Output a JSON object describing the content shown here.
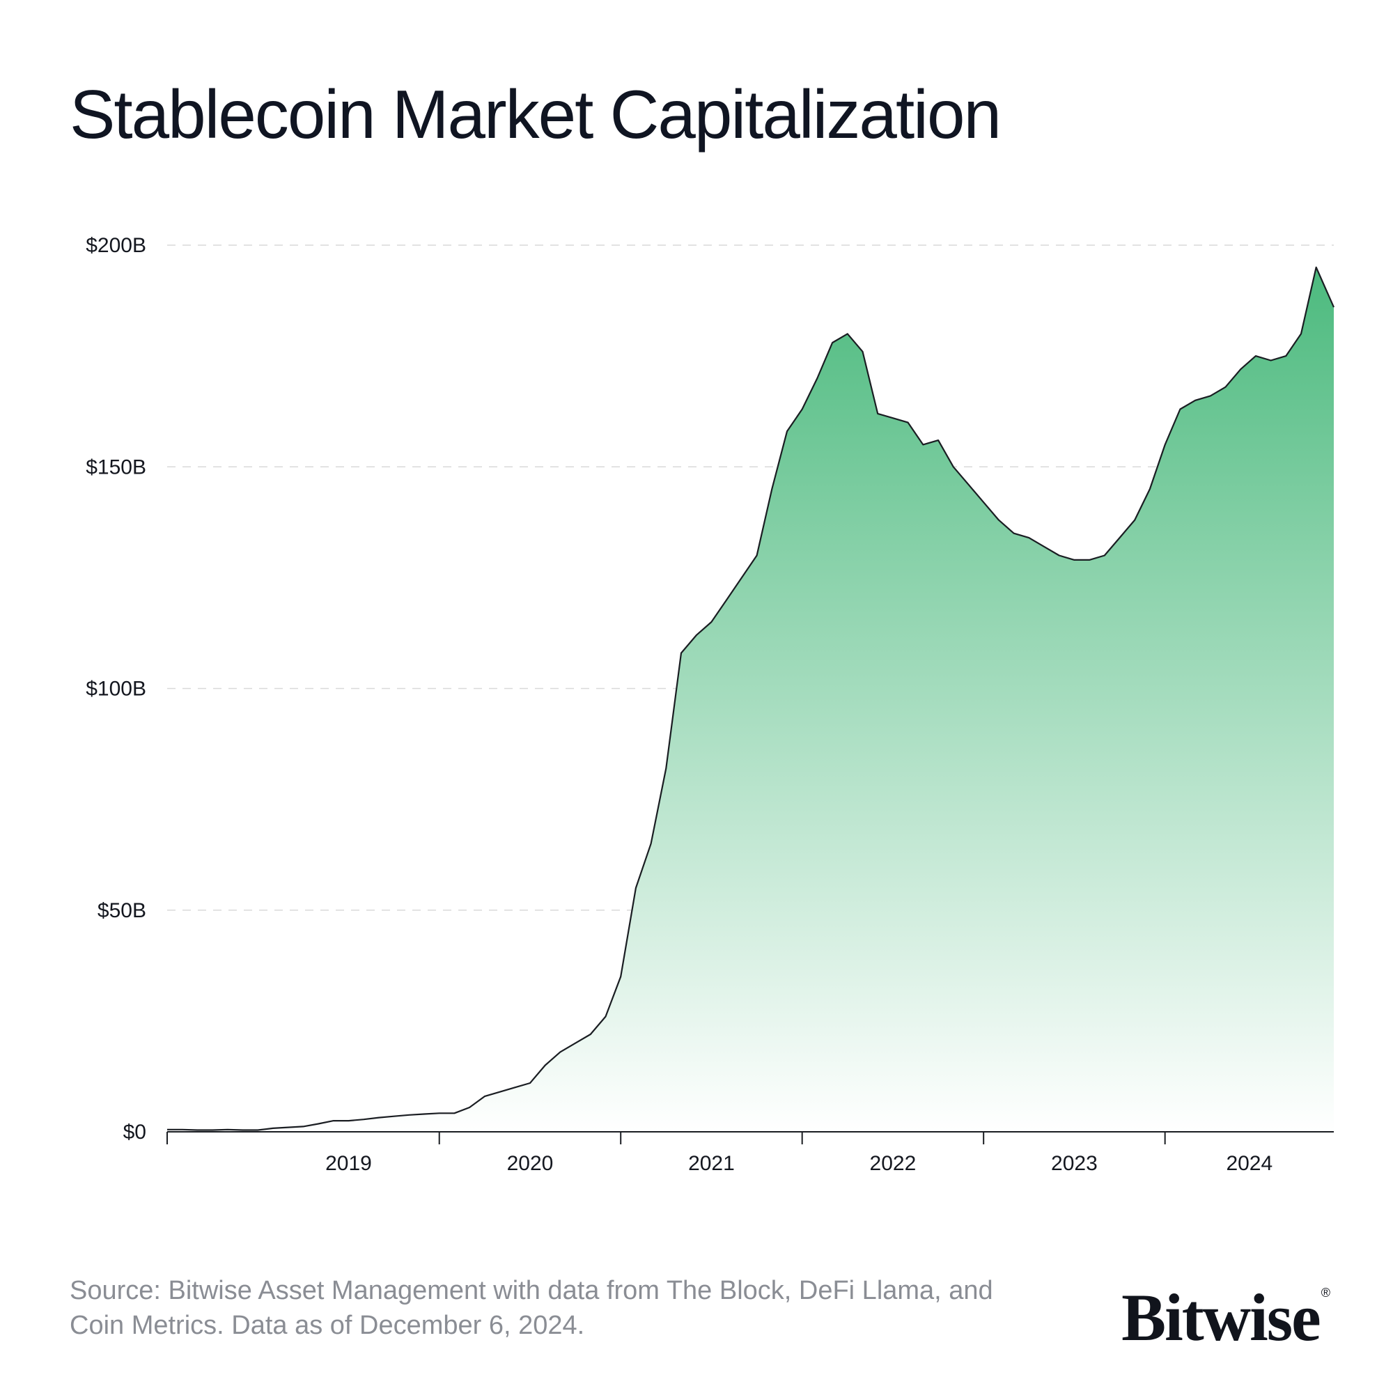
{
  "title": "Stablecoin Market Capitalization",
  "source_text": "Source: Bitwise Asset Management with data from The Block, DeFi Llama, and Coin Metrics. Data as of December 6, 2024.",
  "logo": {
    "text": "Bitwise",
    "mark": "®"
  },
  "colors": {
    "area_top": "#4cba7e",
    "area_bottom": "#ffffff",
    "line": "#1a1d22",
    "grid": "#d9d9d9",
    "axis": "#1a1d22"
  },
  "chart_data": {
    "type": "area",
    "title": "Stablecoin Market Capitalization",
    "xlabel": "",
    "ylabel": "",
    "ylim": [
      0,
      200
    ],
    "yunit": "$B",
    "grid": true,
    "legend": "none",
    "yticks": [
      {
        "value": 0,
        "label": "$0"
      },
      {
        "value": 50,
        "label": "$50B"
      },
      {
        "value": 100,
        "label": "$100B"
      },
      {
        "value": 150,
        "label": "$150B"
      },
      {
        "value": 200,
        "label": "$200B"
      }
    ],
    "xticks": [
      {
        "value": "2019",
        "label": "2019"
      },
      {
        "value": "2020",
        "label": "2020"
      },
      {
        "value": "2021",
        "label": "2021"
      },
      {
        "value": "2022",
        "label": "2022"
      },
      {
        "value": "2023",
        "label": "2023"
      },
      {
        "value": "2024",
        "label": "2024"
      }
    ],
    "xlim": [
      "2018-07",
      "2024-12-06"
    ],
    "series": [
      {
        "x": [
          "2018-07",
          "2018-08",
          "2018-09",
          "2018-10",
          "2018-11",
          "2018-12",
          "2019-01",
          "2019-02",
          "2019-03",
          "2019-04",
          "2019-05",
          "2019-06",
          "2019-07",
          "2019-08",
          "2019-09",
          "2019-10",
          "2019-11",
          "2019-12",
          "2020-01",
          "2020-02",
          "2020-03",
          "2020-04",
          "2020-05",
          "2020-06",
          "2020-07",
          "2020-08",
          "2020-09",
          "2020-10",
          "2020-11",
          "2020-12",
          "2021-01",
          "2021-02",
          "2021-03",
          "2021-04",
          "2021-05",
          "2021-06",
          "2021-07",
          "2021-08",
          "2021-09",
          "2021-10",
          "2021-11",
          "2021-12",
          "2022-01",
          "2022-02",
          "2022-03",
          "2022-04",
          "2022-05",
          "2022-06",
          "2022-07",
          "2022-08",
          "2022-09",
          "2022-10",
          "2022-11",
          "2022-12",
          "2023-01",
          "2023-02",
          "2023-03",
          "2023-04",
          "2023-05",
          "2023-06",
          "2023-07",
          "2023-08",
          "2023-09",
          "2023-10",
          "2023-11",
          "2023-12",
          "2024-01",
          "2024-02",
          "2024-03",
          "2024-04",
          "2024-05",
          "2024-06",
          "2024-07",
          "2024-08",
          "2024-09",
          "2024-10",
          "2024-11",
          "2024-12-06"
        ],
        "values": [
          0.5,
          0.5,
          0.4,
          0.4,
          0.5,
          0.4,
          0.4,
          0.8,
          1.0,
          1.2,
          1.8,
          2.5,
          2.5,
          2.8,
          3.2,
          3.5,
          3.8,
          4.0,
          4.2,
          4.2,
          5.5,
          8.0,
          9.0,
          10.0,
          11.0,
          15.0,
          18.0,
          20.0,
          22.0,
          26.0,
          35.0,
          55.0,
          65.0,
          82.0,
          108.0,
          112.0,
          115.0,
          120.0,
          125.0,
          130.0,
          145.0,
          158.0,
          163.0,
          170.0,
          178.0,
          180.0,
          176.0,
          162.0,
          161.0,
          160.0,
          155.0,
          156.0,
          150.0,
          146.0,
          142.0,
          138.0,
          135.0,
          134.0,
          132.0,
          130.0,
          129.0,
          129.0,
          130.0,
          134.0,
          138.0,
          145.0,
          155.0,
          163.0,
          165.0,
          166.0,
          168.0,
          172.0,
          175.0,
          174.0,
          175.0,
          180.0,
          195.0,
          186.0
        ]
      }
    ]
  }
}
